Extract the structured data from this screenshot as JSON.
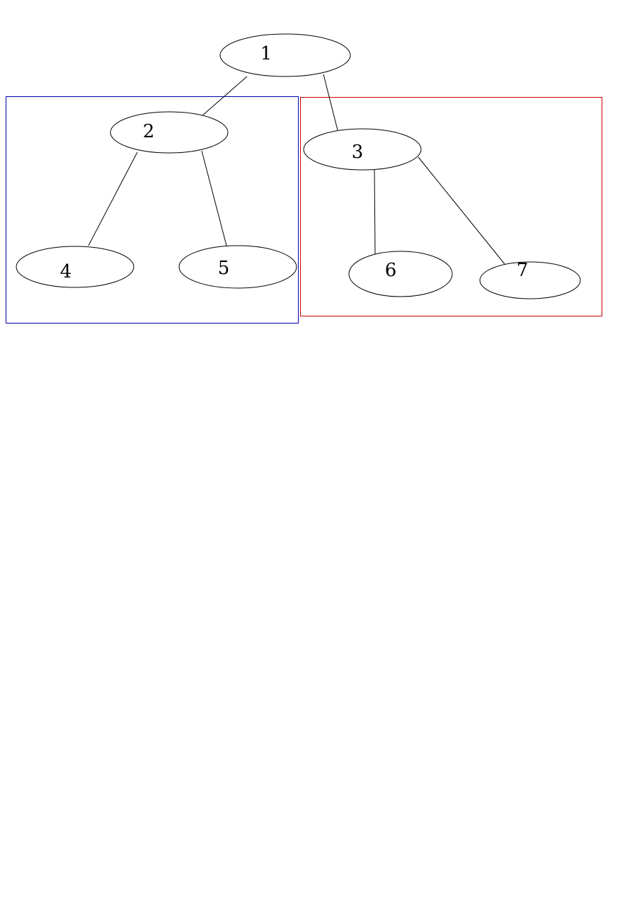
{
  "diagram": {
    "type": "tree",
    "nodes": [
      {
        "id": "n1",
        "label": "1"
      },
      {
        "id": "n2",
        "label": "2"
      },
      {
        "id": "n3",
        "label": "3"
      },
      {
        "id": "n4",
        "label": "4"
      },
      {
        "id": "n5",
        "label": "5"
      },
      {
        "id": "n6",
        "label": "6"
      },
      {
        "id": "n7",
        "label": "7"
      }
    ],
    "edges": [
      {
        "from": "n1",
        "to": "n2"
      },
      {
        "from": "n1",
        "to": "n3"
      },
      {
        "from": "n2",
        "to": "n4"
      },
      {
        "from": "n2",
        "to": "n5"
      },
      {
        "from": "n3",
        "to": "n6"
      },
      {
        "from": "n3",
        "to": "n7"
      }
    ],
    "groups": [
      {
        "id": "left-subtree",
        "contains": [
          "n2",
          "n4",
          "n5"
        ],
        "color": "#0000aa"
      },
      {
        "id": "right-subtree",
        "contains": [
          "n3",
          "n6",
          "n7"
        ],
        "color": "#cc0000"
      }
    ]
  }
}
